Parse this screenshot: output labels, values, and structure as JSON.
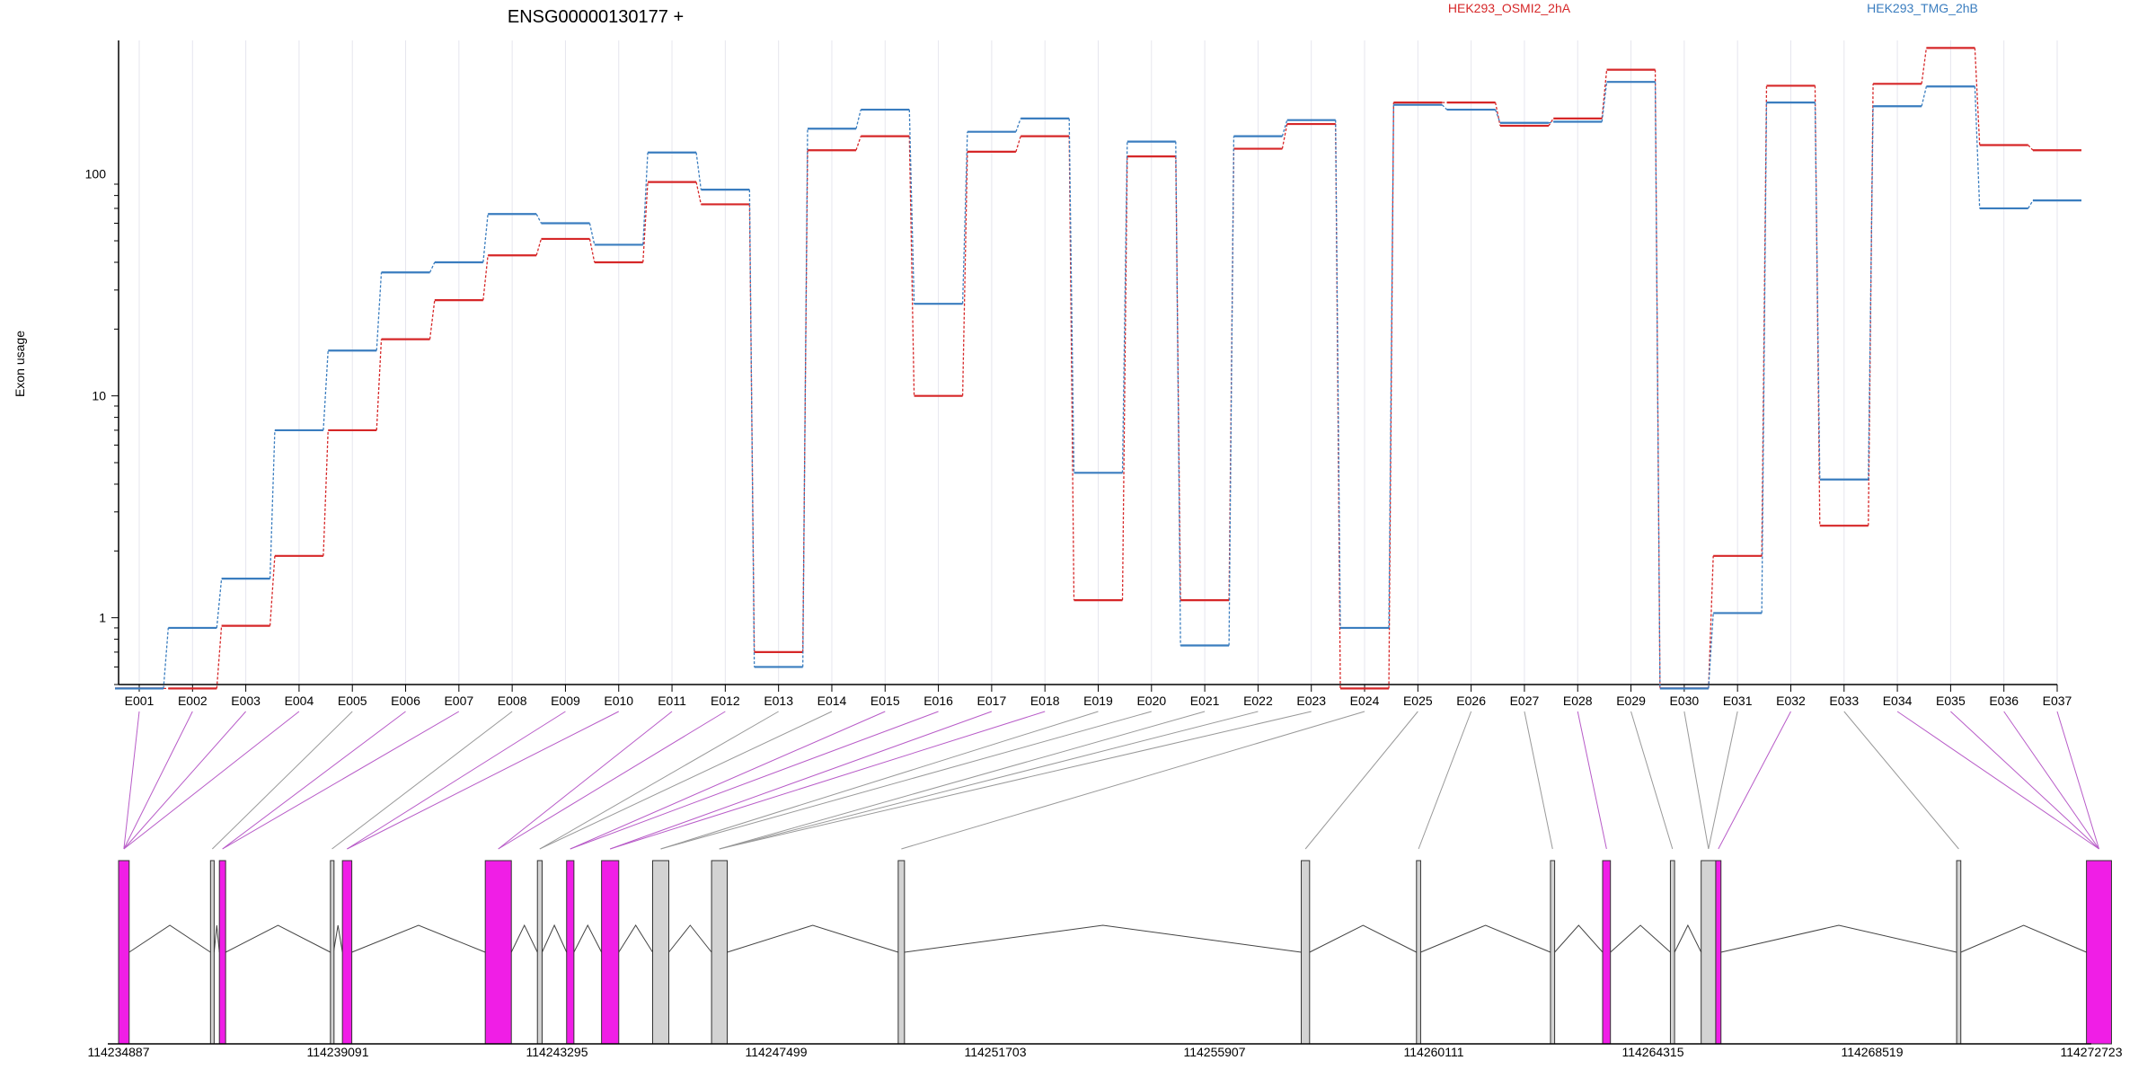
{
  "chart_data": {
    "type": "line",
    "title": "ENSG00000130177 +",
    "ylabel": "Exon usage",
    "yscale": "log",
    "ylim": [
      0.5,
      400
    ],
    "yticks": [
      "1",
      "10",
      "100"
    ],
    "categories": [
      "E001",
      "E002",
      "E003",
      "E004",
      "E005",
      "E006",
      "E007",
      "E008",
      "E009",
      "E010",
      "E011",
      "E012",
      "E013",
      "E014",
      "E015",
      "E016",
      "E017",
      "E018",
      "E019",
      "E020",
      "E021",
      "E022",
      "E023",
      "E024",
      "E025",
      "E026",
      "E027",
      "E028",
      "E029",
      "E030",
      "E031",
      "E032",
      "E033",
      "E034",
      "E035",
      "E036",
      "E037"
    ],
    "series": [
      {
        "name": "HEK293_OSMI2_2hA",
        "color": "#d62728",
        "values": [
          0.48,
          0.48,
          0.92,
          1.9,
          7,
          18,
          27,
          43,
          51,
          40,
          92,
          73,
          0.7,
          128,
          148,
          10,
          126,
          148,
          1.2,
          120,
          1.2,
          130,
          168,
          0.48,
          210,
          210,
          165,
          178,
          295,
          0.48,
          1.9,
          250,
          2.6,
          255,
          370,
          135,
          128
        ]
      },
      {
        "name": "HEK293_TMG_2hB",
        "color": "#3a7dbf",
        "values": [
          0.48,
          0.9,
          1.5,
          7,
          16,
          36,
          40,
          66,
          60,
          48,
          125,
          85,
          0.6,
          160,
          195,
          26,
          155,
          178,
          4.5,
          140,
          0.75,
          148,
          175,
          0.9,
          205,
          195,
          170,
          172,
          260,
          0.48,
          1.05,
          210,
          4.2,
          202,
          248,
          70,
          76
        ]
      }
    ],
    "legend_placement": "top",
    "gene_model": {
      "coordinate_ticks": [
        "114234887",
        "114239091",
        "114243295",
        "114247499",
        "114251703",
        "114255907",
        "114260111",
        "114264315",
        "114268519",
        "114272723"
      ],
      "coordinate_range": [
        114234887,
        114272723
      ],
      "highlight_color": "#f01ee6",
      "plain_color": "#d3d3d3",
      "exons": [
        {
          "start": 114234887,
          "end": 114235090,
          "highlight": true
        },
        {
          "start": 114236650,
          "end": 114236720,
          "highlight": false
        },
        {
          "start": 114236820,
          "end": 114236940,
          "highlight": true
        },
        {
          "start": 114238950,
          "end": 114239010,
          "highlight": false
        },
        {
          "start": 114239180,
          "end": 114239360,
          "highlight": true
        },
        {
          "start": 114241920,
          "end": 114242420,
          "highlight": true
        },
        {
          "start": 114242920,
          "end": 114243010,
          "highlight": false
        },
        {
          "start": 114243480,
          "end": 114243620,
          "highlight": true
        },
        {
          "start": 114244150,
          "end": 114244480,
          "highlight": true
        },
        {
          "start": 114245130,
          "end": 114245440,
          "highlight": false
        },
        {
          "start": 114246260,
          "end": 114246560,
          "highlight": false
        },
        {
          "start": 114249840,
          "end": 114249960,
          "highlight": false
        },
        {
          "start": 114257570,
          "end": 114257730,
          "highlight": false
        },
        {
          "start": 114259780,
          "end": 114259860,
          "highlight": false
        },
        {
          "start": 114262350,
          "end": 114262430,
          "highlight": false
        },
        {
          "start": 114263350,
          "end": 114263500,
          "highlight": true
        },
        {
          "start": 114264650,
          "end": 114264730,
          "highlight": false
        },
        {
          "start": 114265240,
          "end": 114265520,
          "highlight": false
        },
        {
          "start": 114265520,
          "end": 114265620,
          "highlight": true
        },
        {
          "start": 114270140,
          "end": 114270220,
          "highlight": false
        },
        {
          "start": 114272630,
          "end": 114273110,
          "highlight": true
        }
      ]
    }
  }
}
